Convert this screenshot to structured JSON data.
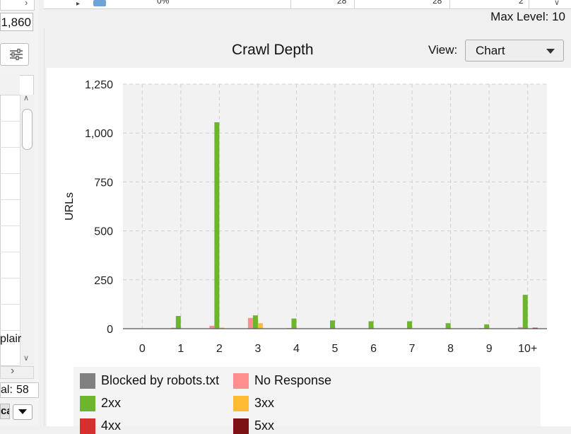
{
  "left_panel": {
    "count_value": "1,860",
    "plain_text": "plair",
    "total_label": "al:",
    "total_value": "58",
    "ca_text": "ca"
  },
  "top_table": {
    "cells": [
      "",
      "0%",
      "28",
      "28",
      "2"
    ],
    "max_level_text": "Max Level: 10"
  },
  "chart_panel": {
    "title": "Crawl Depth",
    "view_label": "View:",
    "view_value": "Chart"
  },
  "colors": {
    "blocked": "#808080",
    "no_response": "#ff8f8f",
    "2xx": "#6cb52d",
    "3xx": "#ffbb33",
    "4xx": "#d62f2f",
    "5xx": "#7b1315"
  },
  "chart_data": {
    "type": "bar",
    "title": "",
    "xlabel": "",
    "ylabel": "URLs",
    "ylim": [
      0,
      1250
    ],
    "yticks": [
      "0",
      "250",
      "500",
      "750",
      "1,000",
      "1,250"
    ],
    "categories": [
      "0",
      "1",
      "2",
      "3",
      "4",
      "5",
      "6",
      "7",
      "8",
      "9",
      "10+"
    ],
    "grid": true,
    "legend_position": "bottom",
    "series": [
      {
        "name": "Blocked by robots.txt",
        "color": "#808080",
        "values": [
          0,
          0,
          0,
          0,
          0,
          0,
          0,
          0,
          0,
          0,
          0
        ]
      },
      {
        "name": "No Response",
        "color": "#ff8f8f",
        "values": [
          0,
          5,
          15,
          55,
          3,
          0,
          0,
          0,
          0,
          3,
          8
        ]
      },
      {
        "name": "2xx",
        "color": "#6cb52d",
        "values": [
          0,
          65,
          1055,
          68,
          52,
          42,
          38,
          38,
          28,
          22,
          173
        ]
      },
      {
        "name": "3xx",
        "color": "#ffbb33",
        "values": [
          0,
          0,
          5,
          28,
          0,
          0,
          0,
          0,
          0,
          0,
          0
        ]
      },
      {
        "name": "4xx",
        "color": "#d62f2f",
        "values": [
          0,
          0,
          0,
          0,
          0,
          0,
          0,
          0,
          0,
          0,
          5
        ]
      },
      {
        "name": "5xx",
        "color": "#7b1315",
        "values": [
          0,
          0,
          0,
          0,
          0,
          0,
          0,
          0,
          0,
          0,
          0
        ]
      }
    ]
  },
  "legend": {
    "items": [
      {
        "label": "Blocked by robots.txt",
        "color": "#808080"
      },
      {
        "label": "No Response",
        "color": "#ff8f8f"
      },
      {
        "label": "2xx",
        "color": "#6cb52d"
      },
      {
        "label": "3xx",
        "color": "#ffbb33"
      },
      {
        "label": "4xx",
        "color": "#d62f2f"
      },
      {
        "label": "5xx",
        "color": "#7b1315"
      }
    ]
  }
}
